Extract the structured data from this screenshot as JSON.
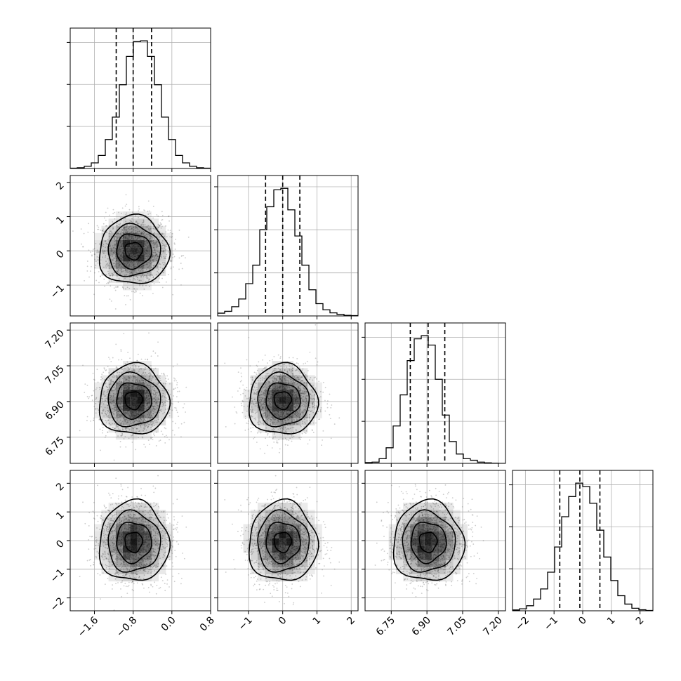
{
  "chart_data": {
    "type": "corner",
    "n_params": 4,
    "grid": true,
    "colors": {
      "line": "#000000",
      "grid": "#b0b0b0",
      "frame": "#000000",
      "density": "#000000",
      "points": "#6e6e6e"
    },
    "params": [
      {
        "index": 0,
        "range": [
          -2.1,
          0.8
        ],
        "ticks": [
          -1.6,
          -0.8,
          0.0,
          0.8
        ],
        "tick_labels": [
          "−1.6",
          "−0.8",
          "0.0",
          "0.8"
        ],
        "quantiles": [
          -1.15,
          -0.8,
          -0.42
        ],
        "hist": {
          "edges": [
            -2.1,
            -1.955,
            -1.81,
            -1.665,
            -1.52,
            -1.375,
            -1.23,
            -1.085,
            -0.94,
            -0.795,
            -0.65,
            -0.505,
            -0.36,
            -0.215,
            -0.07,
            0.075,
            0.22,
            0.365,
            0.51,
            0.655,
            0.8
          ],
          "counts": [
            2,
            5,
            14,
            36,
            84,
            186,
            330,
            538,
            720,
            815,
            820,
            720,
            538,
            330,
            186,
            84,
            36,
            14,
            5,
            2
          ]
        },
        "hist_yticks": [
          270,
          540,
          810
        ]
      },
      {
        "index": 1,
        "range": [
          -1.9,
          2.2
        ],
        "ticks": [
          -1,
          0,
          1,
          2
        ],
        "tick_labels": [
          "−1",
          "0",
          "1",
          "2"
        ],
        "quantiles": [
          -0.5,
          0.0,
          0.5
        ],
        "hist": {
          "edges": [
            -1.9,
            -1.695,
            -1.49,
            -1.285,
            -1.08,
            -0.875,
            -0.67,
            -0.465,
            -0.26,
            -0.055,
            0.15,
            0.355,
            0.56,
            0.765,
            0.97,
            1.175,
            1.38,
            1.585,
            1.79,
            1.995,
            2.2
          ],
          "counts": [
            18,
            30,
            60,
            110,
            210,
            330,
            560,
            710,
            820,
            830,
            690,
            520,
            330,
            170,
            80,
            40,
            20,
            10,
            4,
            2
          ]
        },
        "hist_yticks": [
          280,
          560,
          840
        ]
      },
      {
        "index": 2,
        "range": [
          6.64,
          7.23
        ],
        "ticks": [
          6.75,
          6.9,
          7.05,
          7.2
        ],
        "tick_labels": [
          "6.75",
          "6.90",
          "7.05",
          "7.20"
        ],
        "quantiles": [
          6.83,
          6.905,
          6.975
        ],
        "hist": {
          "edges": [
            6.64,
            6.6695,
            6.699,
            6.7285,
            6.758,
            6.7875,
            6.817,
            6.8465,
            6.876,
            6.9055,
            6.935,
            6.9645,
            6.994,
            7.0235,
            7.053,
            7.0825,
            7.112,
            7.1415,
            7.171,
            7.2005,
            7.23
          ],
          "counts": [
            5,
            8,
            30,
            100,
            240,
            440,
            660,
            800,
            820,
            760,
            540,
            310,
            140,
            60,
            30,
            20,
            8,
            3,
            1,
            0
          ]
        },
        "hist_yticks": [
          270,
          540,
          810
        ]
      },
      {
        "index": 3,
        "range": [
          -2.45,
          2.45
        ],
        "ticks": [
          -2,
          -1,
          0,
          1,
          2
        ],
        "tick_labels": [
          "−2",
          "−1",
          "0",
          "1",
          "2"
        ],
        "quantiles": [
          -0.8,
          -0.1,
          0.6
        ],
        "hist": {
          "edges": [
            -2.45,
            -2.205,
            -1.96,
            -1.715,
            -1.47,
            -1.225,
            -0.98,
            -0.735,
            -0.49,
            -0.245,
            0.0,
            0.245,
            0.49,
            0.735,
            0.98,
            1.225,
            1.47,
            1.715,
            1.96,
            2.205,
            2.45
          ],
          "counts": [
            5,
            12,
            30,
            70,
            130,
            230,
            380,
            560,
            680,
            760,
            740,
            640,
            480,
            320,
            180,
            90,
            40,
            15,
            6,
            2
          ]
        },
        "hist_yticks": [
          250,
          500,
          750
        ]
      }
    ],
    "pairs": [
      {
        "x": 0,
        "y": 1,
        "mx": -0.79,
        "my": 0.0,
        "sx": 0.36,
        "sy": 0.5
      },
      {
        "x": 0,
        "y": 2,
        "mx": -0.79,
        "my": 6.905,
        "sx": 0.36,
        "sy": 0.074
      },
      {
        "x": 1,
        "y": 2,
        "mx": 0.0,
        "my": 6.905,
        "sx": 0.5,
        "sy": 0.074
      },
      {
        "x": 0,
        "y": 3,
        "mx": -0.79,
        "my": -0.05,
        "sx": 0.36,
        "sy": 0.7
      },
      {
        "x": 1,
        "y": 3,
        "mx": 0.0,
        "my": -0.05,
        "sx": 0.5,
        "sy": 0.7
      },
      {
        "x": 2,
        "y": 3,
        "mx": 6.905,
        "my": -0.05,
        "sx": 0.074,
        "sy": 0.7
      }
    ],
    "contour_levels_sigma": [
      0.5,
      1.0,
      1.5,
      2.0
    ]
  }
}
